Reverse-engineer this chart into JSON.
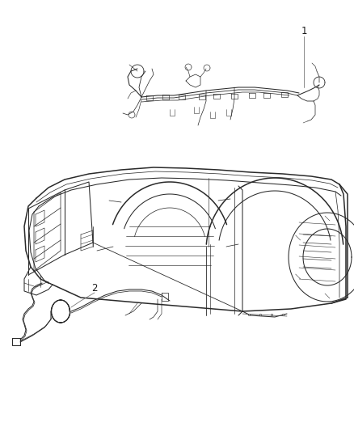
{
  "background_color": "#ffffff",
  "line_color": "#2a2a2a",
  "label_color": "#1a1a1a",
  "label_fontsize": 8.5,
  "fig_width": 4.38,
  "fig_height": 5.33,
  "dpi": 100,
  "annotation_line_color": "#777777",
  "annotation_lw": 0.6,
  "main_lw": 0.75,
  "thick_lw": 1.1
}
